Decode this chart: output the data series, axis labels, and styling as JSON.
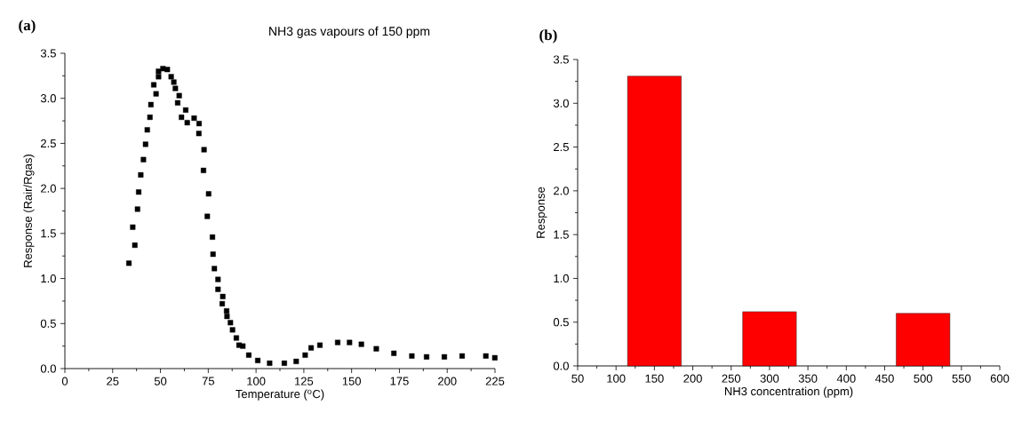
{
  "chart_data": [
    {
      "type": "scatter",
      "annotations": [
        "(a)",
        "NH3 gas vapours of 150 ppm"
      ],
      "xlabel": "Temperature ($^{o}$C)",
      "ylabel": "Response (Rair/Rgas)",
      "color": "#000000",
      "marker": "square",
      "x": [
        33.5,
        35.5,
        36.6,
        38.0,
        38.6,
        39.7,
        41.1,
        42.2,
        43.1,
        44.5,
        45.0,
        46.5,
        47.7,
        49.0,
        49.0,
        51.3,
        53.6,
        55.6,
        57.0,
        57.8,
        59.0,
        59.8,
        61.0,
        63.2,
        64.0,
        67.6,
        70.1,
        70.2,
        72.5,
        72.8,
        74.5,
        75.2,
        77.2,
        77.5,
        78.2,
        80.1,
        80.1,
        82.3,
        82.6,
        84.6,
        84.8,
        86.6,
        87.7,
        89.7,
        91.1,
        93.1,
        96.2,
        100.9,
        107.1,
        114.8,
        121.0,
        125.7,
        128.8,
        133.4,
        142.7,
        148.9,
        155.1,
        162.9,
        172.1,
        181.5,
        189.2,
        198.5,
        207.8,
        220.2,
        224.9
      ],
      "values": [
        1.17,
        1.57,
        1.37,
        1.77,
        1.96,
        2.15,
        2.32,
        2.49,
        2.65,
        2.79,
        2.93,
        3.15,
        3.05,
        3.24,
        3.3,
        3.33,
        3.32,
        3.24,
        3.18,
        3.11,
        2.95,
        3.03,
        2.79,
        2.87,
        2.73,
        2.78,
        2.61,
        2.72,
        2.2,
        2.43,
        1.69,
        1.94,
        1.46,
        1.27,
        1.11,
        0.99,
        0.88,
        0.72,
        0.8,
        0.64,
        0.58,
        0.51,
        0.43,
        0.34,
        0.26,
        0.25,
        0.15,
        0.09,
        0.06,
        0.06,
        0.08,
        0.15,
        0.23,
        0.26,
        0.29,
        0.29,
        0.27,
        0.22,
        0.17,
        0.14,
        0.13,
        0.13,
        0.14,
        0.14,
        0.12
      ],
      "xlim": [
        0,
        225
      ],
      "ylim": [
        0,
        3.5
      ],
      "xticks": [
        0,
        25,
        50,
        75,
        100,
        125,
        150,
        175,
        200,
        225
      ],
      "yticks": [
        {
          "value": 0,
          "label": "0.0"
        },
        {
          "value": 0.5,
          "label": "0.5"
        },
        {
          "value": 1,
          "label": "1.0"
        },
        {
          "value": 1.5,
          "label": "1.5"
        },
        {
          "value": 2,
          "label": "2.0"
        },
        {
          "value": 2.5,
          "label": "2.5"
        },
        {
          "value": 3,
          "label": "3.0"
        },
        {
          "value": 3.5,
          "label": "3.5"
        }
      ]
    },
    {
      "type": "bar",
      "annotations": [
        "(b)"
      ],
      "xlabel": "NH3 concentration (ppm)",
      "ylabel": "Response",
      "color": "#ff0000",
      "x": [
        150,
        300,
        500
      ],
      "values": [
        3.31,
        0.62,
        0.6
      ],
      "xlim": [
        50,
        600
      ],
      "ylim": [
        0,
        3.5
      ],
      "xticks": [
        50,
        100,
        150,
        200,
        250,
        300,
        350,
        400,
        450,
        500,
        550,
        600
      ],
      "yticks": [
        {
          "value": 0,
          "label": "0.0"
        },
        {
          "value": 0.5,
          "label": "0.5"
        },
        {
          "value": 1,
          "label": "1.0"
        },
        {
          "value": 1.5,
          "label": "1.5"
        },
        {
          "value": 2,
          "label": "2.0"
        },
        {
          "value": 2.5,
          "label": "2.5"
        },
        {
          "value": 3,
          "label": "3.0"
        },
        {
          "value": 3.5,
          "label": "3.5"
        }
      ]
    }
  ]
}
